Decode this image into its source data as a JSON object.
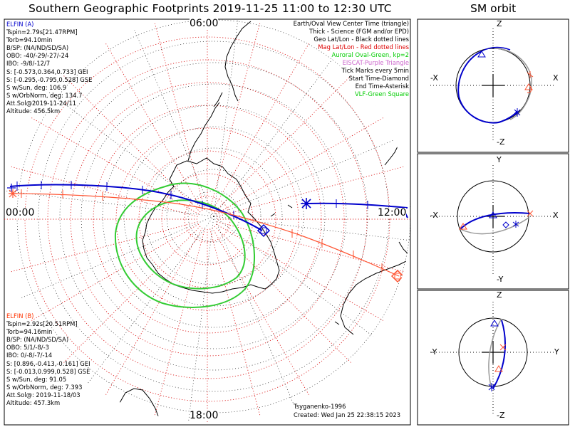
{
  "title": "Southern Geographic Footprints 2019-11-25 11:00 to 12:30 UTC",
  "sm_title": "SM orbit",
  "elfin_a": {
    "color": "#0000cc",
    "lines": [
      "ELFIN (A)",
      "Tspin=2.79s[21.47RPM]",
      "Torb=94.10min",
      "B/SP: (NA/ND/SD/SA)",
      "OBO: -40/-29/-27/-24",
      "IBO: -9/8/-12/7",
      "S: [-0.573,0.364,0.733] GEI",
      "S: [-0.295,-0.795,0.528] GSE",
      "S w/Sun, deg: 106.9",
      "S w/OrbNorm, deg: 134.7",
      "Att.Sol@2019-11-24/11",
      "Altitude: 456.5km"
    ]
  },
  "elfin_b": {
    "color": "#ff3300",
    "lines": [
      "ELFIN (B)",
      "Tspin=2.92s[20.51RPM]",
      "Torb=94.16min",
      "B/SP: (NA/ND/SD/SA)",
      "OBO: 5/1/-8/-3",
      "IBO: 0/-8/-7/-14",
      "S: [0.896,-0.413,-0.161] GEI",
      "S: [-0.013,0.999,0.528] GSE",
      "S w/Sun, deg: 91.05",
      "S w/OrbNorm, deg: 7.393",
      "Att.Sol@: 2019-11-18/03",
      "Altitude: 457.3km"
    ]
  },
  "legend": [
    {
      "text": "Earth/Oval View Center Time (triangle)",
      "color": "#000000"
    },
    {
      "text": "Thick - Science (FGM and/or EPD)",
      "color": "#000000"
    },
    {
      "text": "Geo Lat/Lon - Black dotted lines",
      "color": "#000000"
    },
    {
      "text": "Mag Lat/Lon - Red dotted lines",
      "color": "#dd0000"
    },
    {
      "text": "Auroral Oval-Green, kp=2",
      "color": "#00cc00"
    },
    {
      "text": "EISCAT-Purple Triangle",
      "color": "#cc66cc"
    },
    {
      "text": "Tick Marks every 5min",
      "color": "#000000"
    },
    {
      "text": "Start Time-Diamond",
      "color": "#000000"
    },
    {
      "text": "End Time-Asterisk",
      "color": "#000000"
    },
    {
      "text": "VLF-Green Square",
      "color": "#00cc00"
    }
  ],
  "time_labels": {
    "top": "06:00",
    "left": "00:00",
    "right": "12:00",
    "bottom": "18:00"
  },
  "footer": {
    "model": "Tsyganenko-1996",
    "created": "Created: Wed Jan 25 22:38:15 2023"
  },
  "sm_panels": [
    {
      "top": "Z",
      "bottom": "-Z",
      "left": "-X",
      "right": "X"
    },
    {
      "top": "Y",
      "bottom": "-Y",
      "left": "-X",
      "right": "X"
    },
    {
      "top": "Z",
      "bottom": "-Z",
      "left": "-Y",
      "right": "Y"
    }
  ],
  "colors": {
    "elfin_a": "#0000cc",
    "elfin_b": "#ff5533",
    "oval": "#33cc33",
    "mag_grid": "#dd2222",
    "geo_grid": "#000000"
  }
}
